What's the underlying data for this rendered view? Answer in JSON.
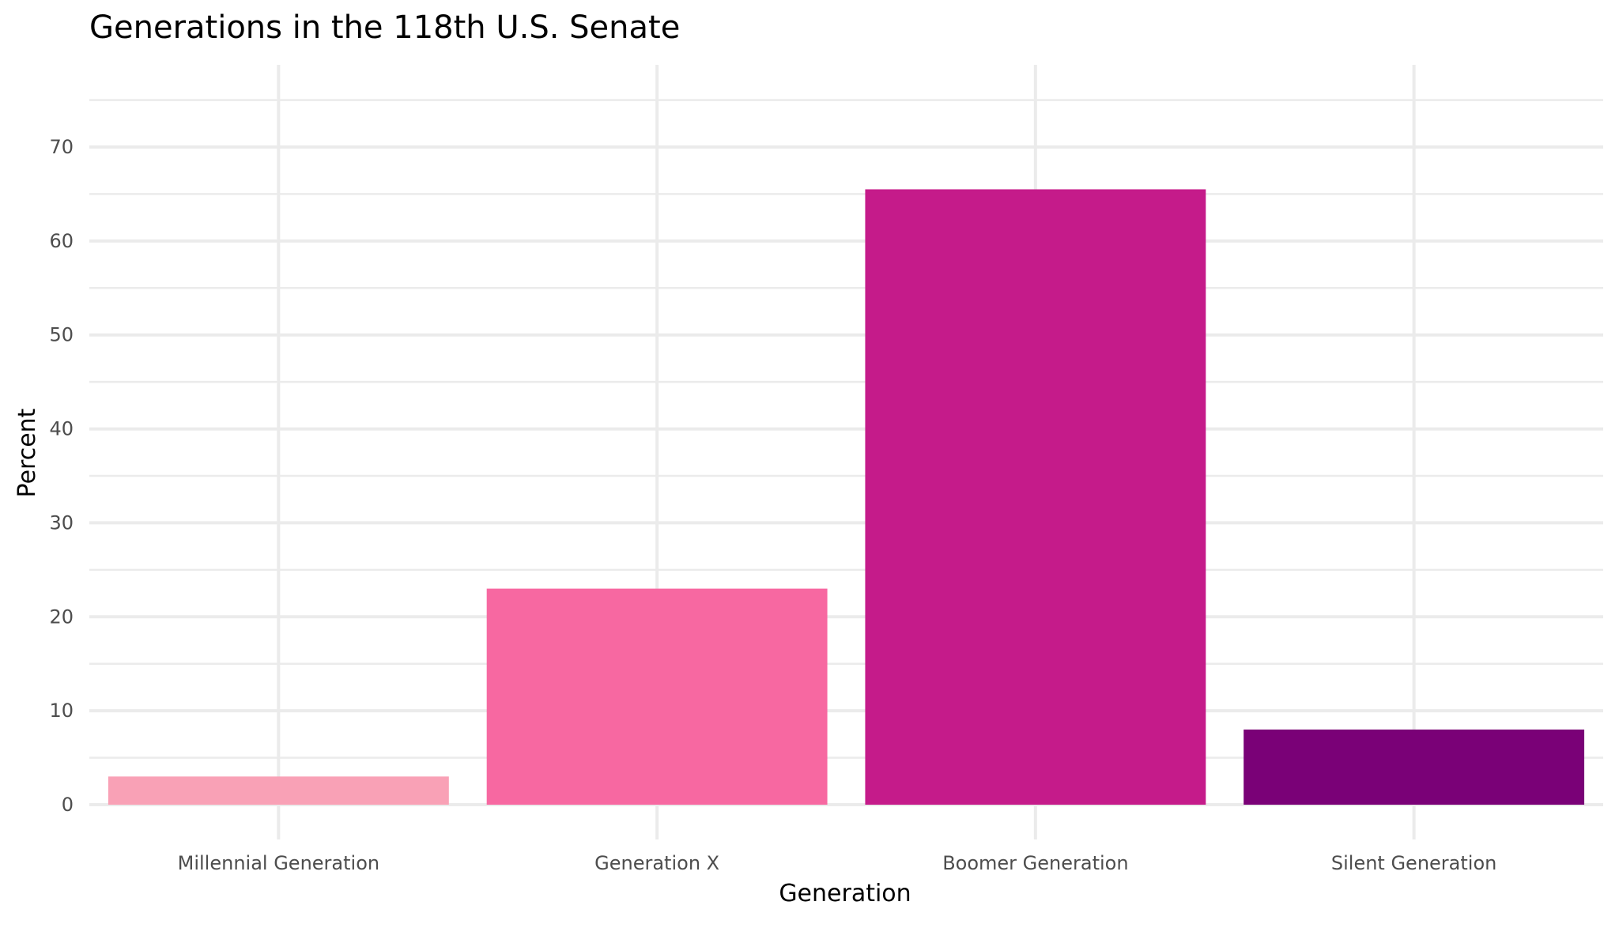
{
  "chart_data": {
    "type": "bar",
    "title": "Generations in the 118th U.S. Senate",
    "xlabel": "Generation",
    "ylabel": "Percent",
    "categories": [
      "Millennial Generation",
      "Generation X",
      "Boomer Generation",
      "Silent Generation"
    ],
    "values": [
      3,
      23,
      65.5,
      8
    ],
    "colors": [
      "#f9a1b6",
      "#f768a1",
      "#c51b8a",
      "#7a0177"
    ],
    "ylim": [
      0,
      78
    ],
    "yticks": [
      0,
      10,
      20,
      30,
      40,
      50,
      60,
      70
    ],
    "grid": true,
    "legend": "none"
  }
}
